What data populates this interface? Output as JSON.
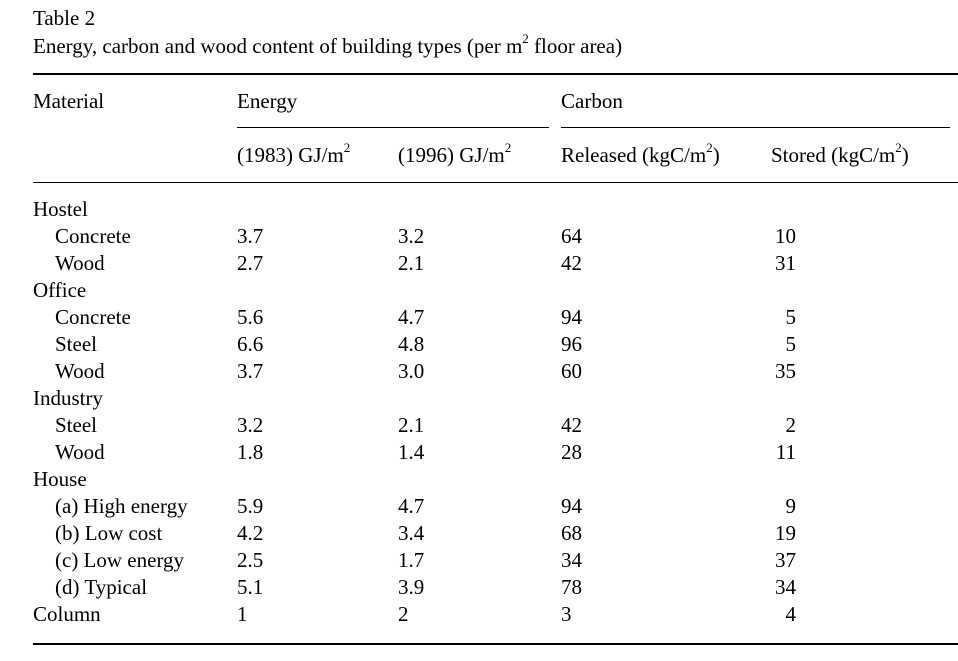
{
  "table": {
    "label": "Table 2",
    "title_main": "Energy, carbon and wood content of building types (per m",
    "title_sup": "2",
    "title_end": " floor area)",
    "headers": {
      "material": "Material",
      "energy": "Energy",
      "carbon": "Carbon",
      "e1983_main": "(1983) GJ/m",
      "e1983_sup": "2",
      "e1996_main": "(1996) GJ/m",
      "e1996_sup": "2",
      "released_main": "Released (kgC/m",
      "released_sup": "2",
      "released_end": ")",
      "stored_main": "Stored (kgC/m",
      "stored_sup": "2",
      "stored_end": ")"
    },
    "rows": [
      {
        "name": "Hostel",
        "e83": "",
        "e96": "",
        "rel": "",
        "sto": ""
      },
      {
        "name": "Concrete",
        "e83": "3.7",
        "e96": "3.2",
        "rel": "64",
        "sto": "10"
      },
      {
        "name": "Wood",
        "e83": "2.7",
        "e96": "2.1",
        "rel": "42",
        "sto": "31"
      },
      {
        "name": "Office",
        "e83": "",
        "e96": "",
        "rel": "",
        "sto": ""
      },
      {
        "name": "Concrete",
        "e83": "5.6",
        "e96": "4.7",
        "rel": "94",
        "sto": "5"
      },
      {
        "name": "Steel",
        "e83": "6.6",
        "e96": "4.8",
        "rel": "96",
        "sto": "5"
      },
      {
        "name": "Wood",
        "e83": "3.7",
        "e96": "3.0",
        "rel": "60",
        "sto": "35"
      },
      {
        "name": "Industry",
        "e83": "",
        "e96": "",
        "rel": "",
        "sto": ""
      },
      {
        "name": "Steel",
        "e83": "3.2",
        "e96": "2.1",
        "rel": "42",
        "sto": "2"
      },
      {
        "name": "Wood",
        "e83": "1.8",
        "e96": "1.4",
        "rel": "28",
        "sto": "11"
      },
      {
        "name": "House",
        "e83": "",
        "e96": "",
        "rel": "",
        "sto": ""
      },
      {
        "name": "(a) High energy",
        "e83": "5.9",
        "e96": "4.7",
        "rel": "94",
        "sto": "9"
      },
      {
        "name": "(b) Low cost",
        "e83": "4.2",
        "e96": "3.4",
        "rel": "68",
        "sto": "19"
      },
      {
        "name": "(c) Low energy",
        "e83": "2.5",
        "e96": "1.7",
        "rel": "34",
        "sto": "37"
      },
      {
        "name": "(d) Typical",
        "e83": "5.1",
        "e96": "3.9",
        "rel": "78",
        "sto": "34"
      },
      {
        "name": "Column",
        "e83": "1",
        "e96": "2",
        "rel": "3",
        "sto": "4"
      }
    ]
  }
}
